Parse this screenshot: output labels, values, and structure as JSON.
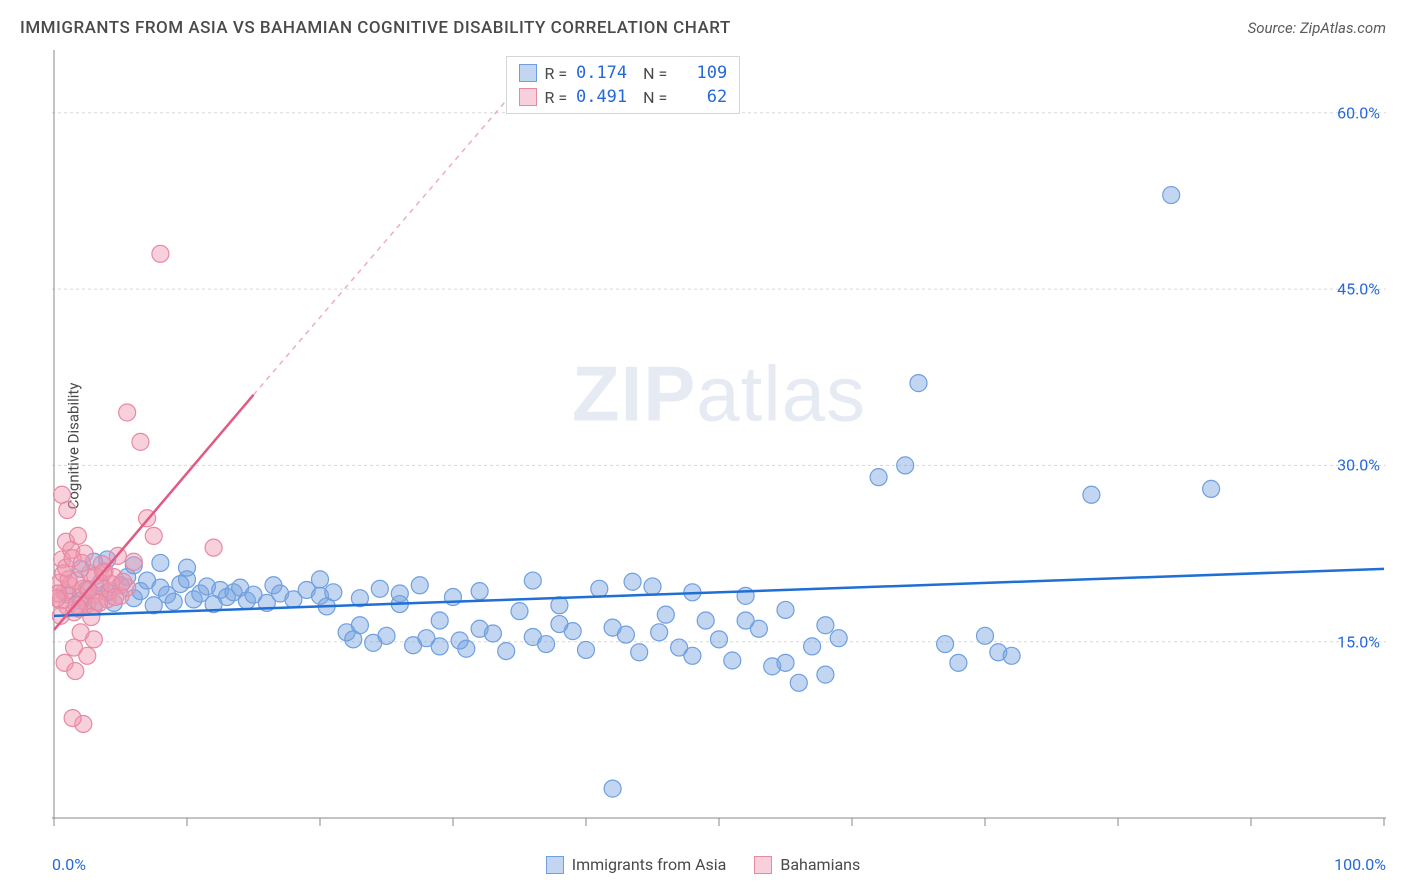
{
  "title": "IMMIGRANTS FROM ASIA VS BAHAMIAN COGNITIVE DISABILITY CORRELATION CHART",
  "source": "Source: ZipAtlas.com",
  "ylabel": "Cognitive Disability",
  "watermark_a": "ZIP",
  "watermark_b": "atlas",
  "chart": {
    "type": "scatter",
    "xlim": [
      0,
      100
    ],
    "ylim": [
      0,
      65
    ],
    "x_ticks_minor": [
      0,
      10,
      20,
      30,
      40,
      50,
      60,
      70,
      80,
      90,
      100
    ],
    "x_tick_labels": [
      "0.0%",
      "100.0%"
    ],
    "y_ticks": [
      15,
      30,
      45,
      60
    ],
    "y_tick_labels": [
      "15.0%",
      "30.0%",
      "45.0%",
      "60.0%"
    ],
    "grid_color": "#d8d8d8",
    "axis_color": "#888888",
    "background": "#ffffff",
    "axis_label_color": "#2569d8",
    "series": [
      {
        "name": "Immigrants from Asia",
        "key": "asia",
        "color_fill": "rgba(120,165,225,0.45)",
        "color_stroke": "#6f9fe0",
        "line_color": "#1f6fd4",
        "r_value": "0.174",
        "n_value": "109",
        "trend": {
          "x1": 0,
          "y1": 17.2,
          "x2": 100,
          "y2": 21.2,
          "dash_from_x": 100
        },
        "points": [
          [
            1,
            19
          ],
          [
            2,
            18.5
          ],
          [
            2.5,
            19.5
          ],
          [
            3,
            18
          ],
          [
            3.5,
            20
          ],
          [
            4,
            19.2
          ],
          [
            4.5,
            18.3
          ],
          [
            5,
            19.8
          ],
          [
            5.5,
            20.5
          ],
          [
            6,
            18.7
          ],
          [
            6.5,
            19.3
          ],
          [
            7,
            20.2
          ],
          [
            7.5,
            18.1
          ],
          [
            8,
            19.6
          ],
          [
            8.5,
            19
          ],
          [
            9,
            18.4
          ],
          [
            9.5,
            19.9
          ],
          [
            10,
            20.3
          ],
          [
            10.5,
            18.6
          ],
          [
            11,
            19.1
          ],
          [
            11.5,
            19.7
          ],
          [
            12,
            18.2
          ],
          [
            12.5,
            19.4
          ],
          [
            13,
            18.8
          ],
          [
            13.5,
            19.2
          ],
          [
            14,
            19.6
          ],
          [
            14.5,
            18.5
          ],
          [
            15,
            19
          ],
          [
            16,
            18.3
          ],
          [
            16.5,
            19.8
          ],
          [
            17,
            19.1
          ],
          [
            18,
            18.6
          ],
          [
            19,
            19.4
          ],
          [
            20,
            18.9
          ],
          [
            20.5,
            18
          ],
          [
            21,
            19.2
          ],
          [
            22,
            15.8
          ],
          [
            22.5,
            15.2
          ],
          [
            23,
            18.7
          ],
          [
            24,
            14.9
          ],
          [
            24.5,
            19.5
          ],
          [
            25,
            15.5
          ],
          [
            26,
            18.2
          ],
          [
            27,
            14.7
          ],
          [
            27.5,
            19.8
          ],
          [
            28,
            15.3
          ],
          [
            29,
            14.6
          ],
          [
            30,
            18.8
          ],
          [
            30.5,
            15.1
          ],
          [
            31,
            14.4
          ],
          [
            32,
            19.3
          ],
          [
            33,
            15.7
          ],
          [
            34,
            14.2
          ],
          [
            35,
            17.6
          ],
          [
            36,
            15.4
          ],
          [
            37,
            14.8
          ],
          [
            38,
            18.1
          ],
          [
            39,
            15.9
          ],
          [
            40,
            14.3
          ],
          [
            41,
            19.5
          ],
          [
            42,
            16.2
          ],
          [
            43,
            15.6
          ],
          [
            43.5,
            20.1
          ],
          [
            44,
            14.1
          ],
          [
            45,
            19.7
          ],
          [
            45.5,
            15.8
          ],
          [
            46,
            17.3
          ],
          [
            47,
            14.5
          ],
          [
            48,
            19.2
          ],
          [
            49,
            16.8
          ],
          [
            50,
            15.2
          ],
          [
            51,
            13.4
          ],
          [
            52,
            18.9
          ],
          [
            53,
            16.1
          ],
          [
            54,
            12.9
          ],
          [
            55,
            17.7
          ],
          [
            56,
            11.5
          ],
          [
            57,
            14.6
          ],
          [
            58,
            12.2
          ],
          [
            59,
            15.3
          ],
          [
            62,
            29
          ],
          [
            64,
            30
          ],
          [
            65,
            37
          ],
          [
            67,
            14.8
          ],
          [
            68,
            13.2
          ],
          [
            70,
            15.5
          ],
          [
            71,
            14.1
          ],
          [
            72,
            13.8
          ],
          [
            78,
            27.5
          ],
          [
            84,
            53
          ],
          [
            87,
            28
          ],
          [
            42,
            2.5
          ],
          [
            6,
            21.5
          ],
          [
            4,
            22
          ],
          [
            3,
            21.8
          ],
          [
            2,
            21.2
          ],
          [
            8,
            21.7
          ],
          [
            10,
            21.3
          ],
          [
            38,
            16.5
          ],
          [
            48,
            13.8
          ],
          [
            52,
            16.8
          ],
          [
            55,
            13.2
          ],
          [
            58,
            16.4
          ],
          [
            36,
            20.2
          ],
          [
            32,
            16.1
          ],
          [
            29,
            16.8
          ],
          [
            26,
            19.1
          ],
          [
            23,
            16.4
          ],
          [
            20,
            20.3
          ]
        ]
      },
      {
        "name": "Bahamians",
        "key": "bahamians",
        "color_fill": "rgba(240,150,175,0.45)",
        "color_stroke": "#e789a3",
        "line_color": "#e15a82",
        "r_value": "0.491",
        "n_value": "62",
        "trend": {
          "x1": 0,
          "y1": 16,
          "x2": 15,
          "y2": 36,
          "dash_from_x": 15,
          "dash_x2": 37,
          "dash_y2": 65
        },
        "points": [
          [
            0.5,
            18.5
          ],
          [
            0.8,
            19.2
          ],
          [
            1,
            18
          ],
          [
            1.2,
            19.8
          ],
          [
            1.5,
            17.5
          ],
          [
            1.7,
            20.2
          ],
          [
            2,
            18.8
          ],
          [
            2.2,
            19.5
          ],
          [
            2.5,
            18.2
          ],
          [
            2.7,
            20.8
          ],
          [
            3,
            19
          ],
          [
            3.2,
            18.4
          ],
          [
            3.5,
            19.7
          ],
          [
            3.8,
            21
          ],
          [
            4,
            18.6
          ],
          [
            4.2,
            19.3
          ],
          [
            4.5,
            20.5
          ],
          [
            5,
            18.9
          ],
          [
            5.5,
            19.6
          ],
          [
            6,
            21.8
          ],
          [
            0.6,
            22
          ],
          [
            0.9,
            23.5
          ],
          [
            1.3,
            22.8
          ],
          [
            1.8,
            24
          ],
          [
            2.3,
            22.5
          ],
          [
            0.4,
            20
          ],
          [
            0.7,
            20.8
          ],
          [
            1.1,
            20.3
          ],
          [
            2,
            15.8
          ],
          [
            3,
            15.2
          ],
          [
            1.5,
            14.5
          ],
          [
            2.5,
            13.8
          ],
          [
            0.8,
            13.2
          ],
          [
            1.6,
            12.5
          ],
          [
            2.2,
            8
          ],
          [
            1.4,
            8.5
          ],
          [
            0.6,
            27.5
          ],
          [
            1,
            26.2
          ],
          [
            5.5,
            34.5
          ],
          [
            6.5,
            32
          ],
          [
            7,
            25.5
          ],
          [
            7.5,
            24
          ],
          [
            12,
            23
          ],
          [
            8,
            48
          ],
          [
            4.8,
            22.3
          ],
          [
            3.6,
            21.6
          ],
          [
            0.3,
            19.1
          ],
          [
            0.5,
            17.2
          ],
          [
            1.9,
            17.8
          ],
          [
            2.8,
            17.1
          ],
          [
            3.4,
            18.3
          ],
          [
            4.3,
            19.9
          ],
          [
            0.2,
            18.7
          ],
          [
            1.7,
            18.1
          ],
          [
            2.6,
            19.4
          ],
          [
            3.1,
            20.6
          ],
          [
            4.6,
            18.8
          ],
          [
            5.2,
            20.1
          ],
          [
            0.9,
            21.3
          ],
          [
            1.4,
            22.1
          ],
          [
            2.1,
            21.7
          ],
          [
            3.7,
            20.9
          ]
        ]
      }
    ]
  },
  "bottom_legend": [
    {
      "label": "Immigrants from Asia",
      "fill": "rgba(120,165,225,0.45)",
      "stroke": "#6f9fe0"
    },
    {
      "label": "Bahamians",
      "fill": "rgba(240,150,175,0.45)",
      "stroke": "#e789a3"
    }
  ]
}
